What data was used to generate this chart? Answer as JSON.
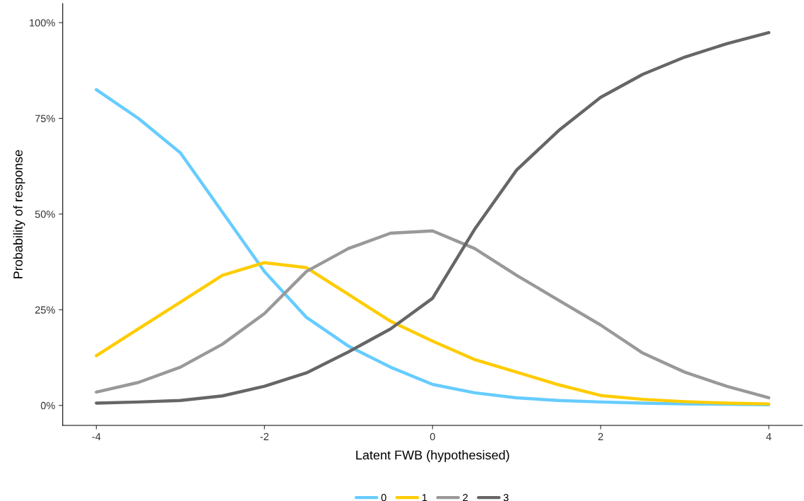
{
  "chart_data": {
    "type": "line",
    "xlabel": "Latent FWB (hypothesised)",
    "ylabel": "Probability of response",
    "x": [
      -4,
      -3.5,
      -3,
      -2.5,
      -2,
      -1.5,
      -1,
      -0.5,
      0,
      0.5,
      1,
      1.5,
      2,
      2.5,
      3,
      3.5,
      4
    ],
    "series": [
      {
        "name": "0",
        "color": "#66ccff",
        "values": [
          82.5,
          75,
          66,
          50.5,
          35,
          23,
          15.5,
          10,
          5.5,
          3.3,
          2,
          1.3,
          0.9,
          0.6,
          0.4,
          0.3,
          0.2
        ]
      },
      {
        "name": "1",
        "color": "#ffcc00",
        "values": [
          13,
          20,
          27,
          34,
          37.3,
          36,
          29,
          22,
          16.8,
          12,
          8.7,
          5.4,
          2.6,
          1.6,
          1,
          0.6,
          0.4
        ]
      },
      {
        "name": "2",
        "color": "#999999",
        "values": [
          3.5,
          6,
          10,
          16,
          24,
          35,
          41,
          45,
          45.6,
          41,
          34,
          27.5,
          21,
          13.7,
          8.7,
          5,
          2
        ]
      },
      {
        "name": "3",
        "color": "#666666",
        "values": [
          0.6,
          0.9,
          1.3,
          2.5,
          5,
          8.5,
          14,
          20,
          28,
          46,
          61.5,
          71.8,
          80.5,
          86.5,
          91,
          94.5,
          97.4
        ]
      }
    ],
    "xlim": [
      -4.4,
      4.4
    ],
    "xticks": [
      -4,
      -2,
      0,
      2,
      4
    ],
    "ylim": [
      -5.2,
      105
    ],
    "yticks": [
      {
        "value": 0,
        "label": "0%"
      },
      {
        "value": 25,
        "label": "25%"
      },
      {
        "value": 50,
        "label": "50%"
      },
      {
        "value": 75,
        "label": "75%"
      },
      {
        "value": 100,
        "label": "100%"
      }
    ],
    "grid": false,
    "legend": "bottom",
    "marker": "none",
    "line_style": "solid"
  }
}
